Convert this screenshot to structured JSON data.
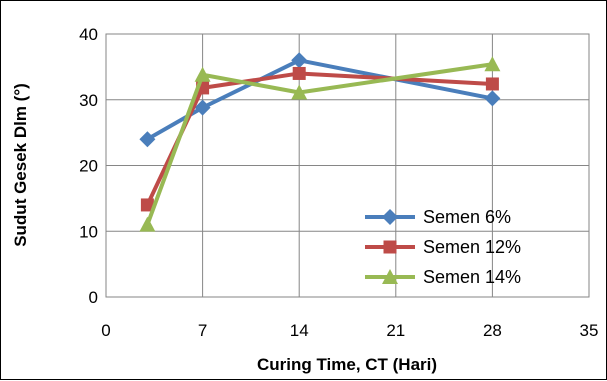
{
  "chart_data": {
    "type": "line",
    "title": "",
    "xlabel": "Curing Time, CT (Hari)",
    "ylabel": "Sudut Gesek Dlm (°)",
    "xlim": [
      0,
      35
    ],
    "ylim": [
      0,
      40
    ],
    "xticks": [
      0,
      7,
      14,
      21,
      28,
      35
    ],
    "yticks": [
      0,
      10,
      20,
      30,
      40
    ],
    "grid": true,
    "legend_position": "bottom-right",
    "x": [
      3,
      7,
      14,
      28
    ],
    "series": [
      {
        "name": "Semen 6%",
        "color": "#4a7ebb",
        "marker": "diamond",
        "values": [
          24.0,
          28.8,
          36.0,
          30.2
        ]
      },
      {
        "name": "Semen 12%",
        "color": "#be4b48",
        "marker": "square",
        "values": [
          14.0,
          31.8,
          34.0,
          32.4
        ]
      },
      {
        "name": "Semen 14%",
        "color": "#98b954",
        "marker": "triangle",
        "values": [
          11.0,
          33.8,
          31.1,
          35.4
        ]
      }
    ]
  }
}
